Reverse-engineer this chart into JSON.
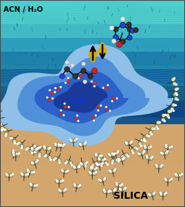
{
  "label_acn_h2o": "ACN / H₂O",
  "label_h2o": "H₂O",
  "label_silica": "SILICA",
  "bg_teal": "#4ecece",
  "bg_blue1": "#2080b8",
  "bg_blue2": "#1060a0",
  "bg_blue3": "#0a4880",
  "bg_sand": "#d4a870",
  "pool_dark": "#1a3a9a",
  "pool_mid": "#2a60c8",
  "pool_light": "#5090d8",
  "pool_pale": "#90c0e8",
  "acn_color": "#000000",
  "h2o_color": "#1133cc",
  "silica_color": "#000000",
  "arrow_gold": "#ddaa00",
  "arrow_dark": "#222200",
  "streamline_dark": "#1a6060",
  "streamline_mid": "#2a8888",
  "sand_silanol_line": "#555533",
  "silanol_circle": "#ddddbb"
}
